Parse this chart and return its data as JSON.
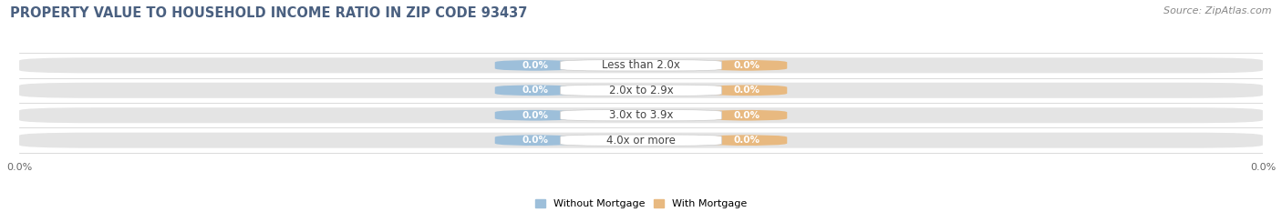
{
  "title": "PROPERTY VALUE TO HOUSEHOLD INCOME RATIO IN ZIP CODE 93437",
  "source": "Source: ZipAtlas.com",
  "categories": [
    "Less than 2.0x",
    "2.0x to 2.9x",
    "3.0x to 3.9x",
    "4.0x or more"
  ],
  "without_mortgage": [
    0.0,
    0.0,
    0.0,
    0.0
  ],
  "with_mortgage": [
    0.0,
    0.0,
    0.0,
    0.0
  ],
  "bar_color_left": "#9dbfda",
  "bar_color_right": "#e8b980",
  "bg_bar_color": "#e4e4e4",
  "bg_bar_color_alt": "#ececec",
  "title_fontsize": 10.5,
  "source_fontsize": 8,
  "label_fontsize": 8.5,
  "value_fontsize": 7.5,
  "axis_label_fontsize": 8,
  "legend_label_left": "Without Mortgage",
  "legend_label_right": "With Mortgage",
  "xlim": [
    -1.0,
    1.0
  ],
  "background_color": "#ffffff",
  "title_color": "#4a6080",
  "category_label_color": "#444444"
}
